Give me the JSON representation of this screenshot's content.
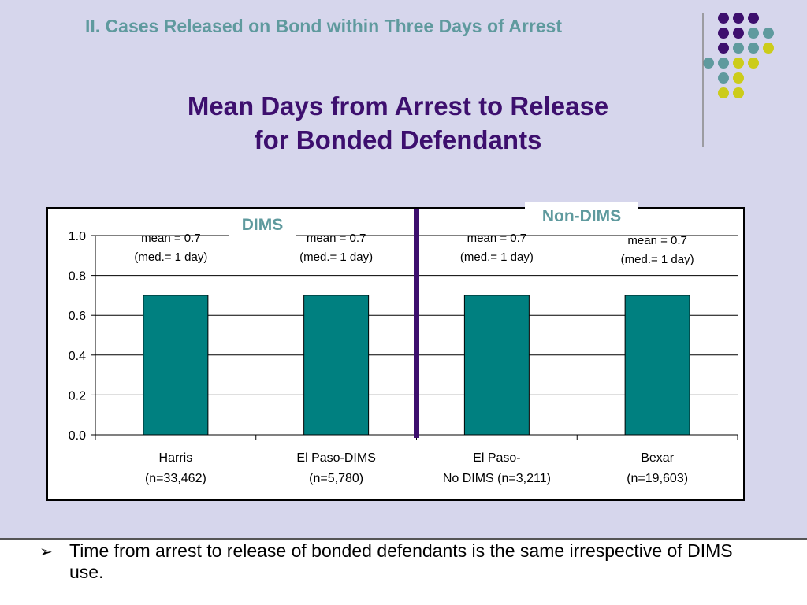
{
  "header": {
    "section_heading": "II.  Cases Released on Bond within Three Days of Arrest",
    "title_line1": "Mean Days from Arrest to Release",
    "title_line2": "for Bonded Defendants"
  },
  "groups": {
    "left_label": "DIMS",
    "right_label": "Non-DIMS"
  },
  "colors": {
    "bar": "#008080",
    "divider": "#3d0f6e",
    "accent_teal": "#5f9a9e",
    "accent_purple": "#3d0f6e",
    "accent_yellow": "#cccc1a",
    "background": "#d6d6ec"
  },
  "chart_data": {
    "type": "bar",
    "ylim": [
      0,
      1.0
    ],
    "y_ticks": [
      "0.0",
      "0.2",
      "0.4",
      "0.6",
      "0.8",
      "1.0"
    ],
    "grid": true,
    "categories": [
      [
        "Harris",
        "(n=33,462)"
      ],
      [
        "El Paso-DIMS",
        "(n=5,780)"
      ],
      [
        "El Paso-",
        "No DIMS (n=3,211)"
      ],
      [
        "Bexar",
        "(n=19,603)"
      ]
    ],
    "values": [
      0.7,
      0.7,
      0.7,
      0.7
    ],
    "annotations": [
      [
        "mean = 0.7",
        "(med.= 1 day)"
      ],
      [
        "mean = 0.7",
        "(med.= 1 day)"
      ],
      [
        "mean = 0.7",
        "(med.= 1 day)"
      ],
      [
        "mean = 0.7",
        "(med.= 1 day)"
      ]
    ]
  },
  "bullets": [
    {
      "marker": "➢",
      "text": "Time from arrest to release of bonded defendants is the same irrespective of DIMS use."
    }
  ]
}
